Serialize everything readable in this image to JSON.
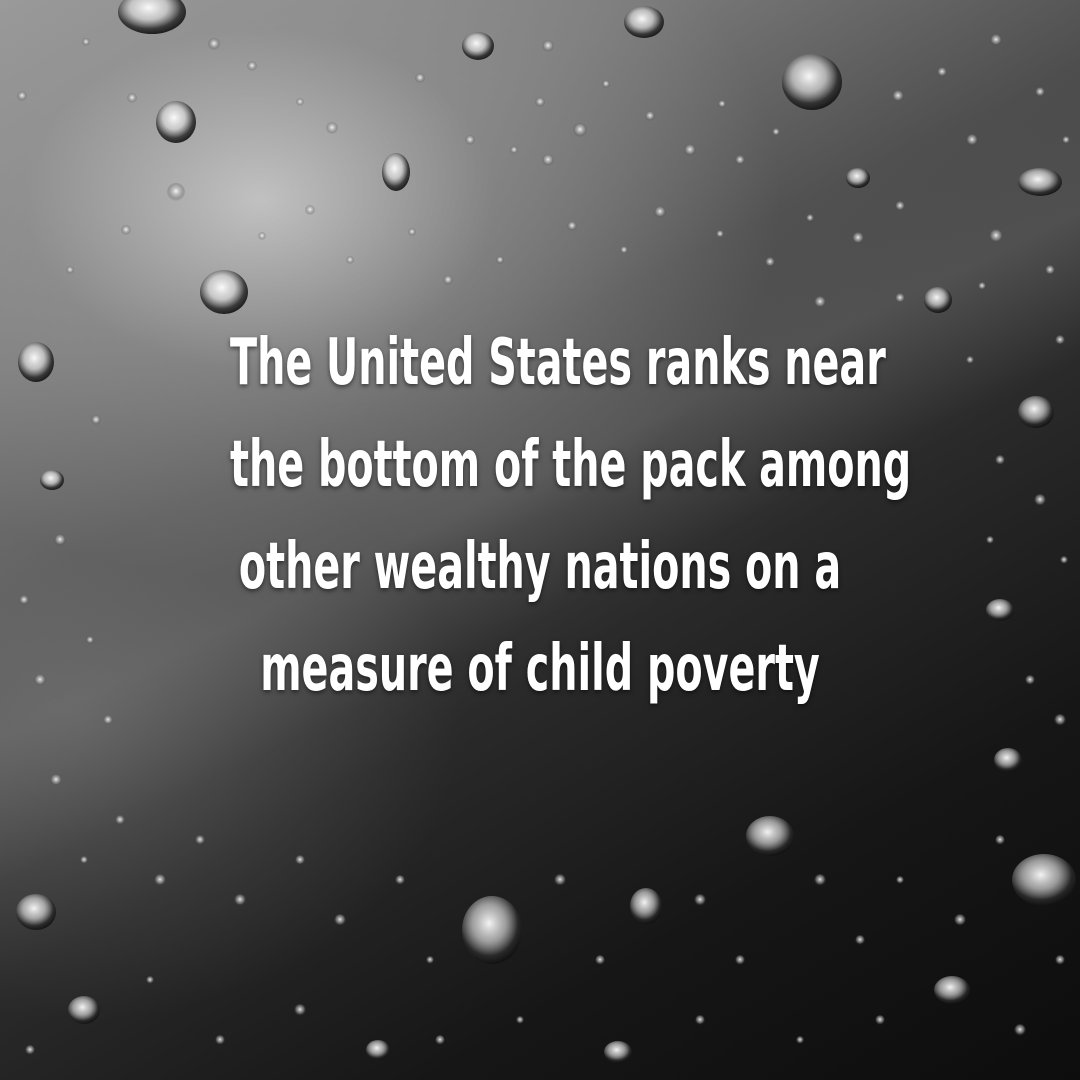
{
  "quote": {
    "lines": [
      "The United States ranks near",
      "the bottom of the pack among",
      "other wealthy nations on a",
      "measure of child poverty"
    ]
  },
  "background": {
    "description_color_light": "#a8a8a8",
    "description_color_dark": "#111111",
    "text_color": "#ffffff"
  }
}
